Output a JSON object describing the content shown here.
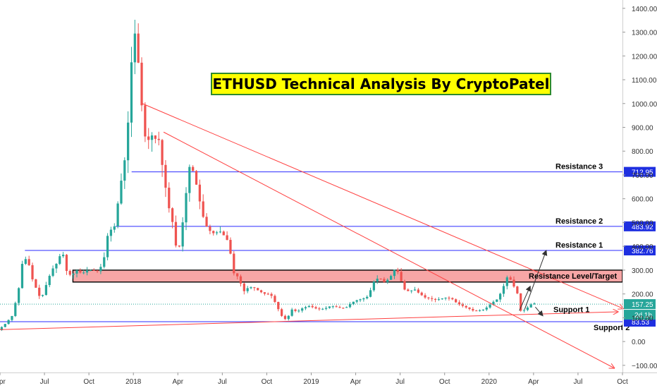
{
  "chart_data": {
    "type": "candlestick",
    "title": "ETHUSD Technical Analysis By CryptoPatel",
    "y_ticks": [
      -100,
      0,
      100,
      200,
      300,
      400,
      500,
      600,
      700,
      800,
      900,
      1000,
      1100,
      1200,
      1300,
      1400
    ],
    "y_tick_labels": [
      "−100.00",
      "0.00",
      "100.00",
      "200.00",
      "300.00",
      "400.00",
      "500.00",
      "600.00",
      "700.00",
      "800.00",
      "900.00",
      "1000.00",
      "1100.00",
      "1200.00",
      "1300.00",
      "1400.00"
    ],
    "ylim": [
      -130,
      1435
    ],
    "x_labels": [
      "Apr",
      "Jul",
      "Oct",
      "2018",
      "Apr",
      "Jul",
      "Oct",
      "2019",
      "Apr",
      "Jul",
      "Oct",
      "2020",
      "Apr",
      "Jul",
      "Oct"
    ],
    "x_label_positions": [
      2017.25,
      2017.5,
      2017.75,
      2018.0,
      2018.25,
      2018.5,
      2018.75,
      2019.0,
      2019.25,
      2019.5,
      2019.75,
      2020.0,
      2020.25,
      2020.5,
      2020.75
    ],
    "xlim": [
      2017.25,
      2020.75
    ],
    "price_path": [
      [
        2017.25,
        48
      ],
      [
        2017.29,
        75
      ],
      [
        2017.33,
        110
      ],
      [
        2017.37,
        240
      ],
      [
        2017.39,
        360
      ],
      [
        2017.42,
        330
      ],
      [
        2017.44,
        265
      ],
      [
        2017.47,
        210
      ],
      [
        2017.49,
        175
      ],
      [
        2017.52,
        240
      ],
      [
        2017.55,
        300
      ],
      [
        2017.58,
        330
      ],
      [
        2017.61,
        385
      ],
      [
        2017.63,
        300
      ],
      [
        2017.66,
        275
      ],
      [
        2017.69,
        300
      ],
      [
        2017.72,
        285
      ],
      [
        2017.75,
        300
      ],
      [
        2017.78,
        300
      ],
      [
        2017.81,
        295
      ],
      [
        2017.84,
        330
      ],
      [
        2017.87,
        470
      ],
      [
        2017.9,
        470
      ],
      [
        2017.93,
        620
      ],
      [
        2017.95,
        720
      ],
      [
        2017.97,
        800
      ],
      [
        2017.99,
        1050
      ],
      [
        2018.01,
        1330
      ],
      [
        2018.03,
        1240
      ],
      [
        2018.05,
        1050
      ],
      [
        2018.07,
        870
      ],
      [
        2018.09,
        840
      ],
      [
        2018.11,
        870
      ],
      [
        2018.13,
        850
      ],
      [
        2018.15,
        860
      ],
      [
        2018.17,
        750
      ],
      [
        2018.19,
        650
      ],
      [
        2018.21,
        560
      ],
      [
        2018.23,
        500
      ],
      [
        2018.25,
        395
      ],
      [
        2018.27,
        400
      ],
      [
        2018.29,
        520
      ],
      [
        2018.31,
        650
      ],
      [
        2018.33,
        760
      ],
      [
        2018.35,
        700
      ],
      [
        2018.37,
        640
      ],
      [
        2018.39,
        560
      ],
      [
        2018.41,
        500
      ],
      [
        2018.43,
        470
      ],
      [
        2018.45,
        460
      ],
      [
        2018.47,
        450
      ],
      [
        2018.49,
        470
      ],
      [
        2018.51,
        450
      ],
      [
        2018.53,
        440
      ],
      [
        2018.55,
        400
      ],
      [
        2018.57,
        290
      ],
      [
        2018.6,
        270
      ],
      [
        2018.63,
        210
      ],
      [
        2018.66,
        230
      ],
      [
        2018.69,
        225
      ],
      [
        2018.72,
        210
      ],
      [
        2018.75,
        200
      ],
      [
        2018.78,
        200
      ],
      [
        2018.81,
        160
      ],
      [
        2018.84,
        110
      ],
      [
        2018.87,
        90
      ],
      [
        2018.9,
        135
      ],
      [
        2018.93,
        125
      ],
      [
        2018.96,
        140
      ],
      [
        2019.0,
        150
      ],
      [
        2019.03,
        140
      ],
      [
        2019.06,
        135
      ],
      [
        2019.09,
        140
      ],
      [
        2019.12,
        150
      ],
      [
        2019.15,
        145
      ],
      [
        2019.18,
        140
      ],
      [
        2019.21,
        145
      ],
      [
        2019.24,
        165
      ],
      [
        2019.27,
        175
      ],
      [
        2019.3,
        180
      ],
      [
        2019.33,
        190
      ],
      [
        2019.36,
        250
      ],
      [
        2019.39,
        270
      ],
      [
        2019.42,
        250
      ],
      [
        2019.45,
        265
      ],
      [
        2019.48,
        305
      ],
      [
        2019.5,
        290
      ],
      [
        2019.53,
        220
      ],
      [
        2019.56,
        210
      ],
      [
        2019.59,
        220
      ],
      [
        2019.62,
        200
      ],
      [
        2019.65,
        185
      ],
      [
        2019.68,
        180
      ],
      [
        2019.71,
        175
      ],
      [
        2019.74,
        180
      ],
      [
        2019.77,
        185
      ],
      [
        2019.8,
        180
      ],
      [
        2019.83,
        160
      ],
      [
        2019.86,
        150
      ],
      [
        2019.89,
        140
      ],
      [
        2019.92,
        130
      ],
      [
        2019.95,
        130
      ],
      [
        2019.98,
        135
      ],
      [
        2020.0,
        145
      ],
      [
        2020.03,
        165
      ],
      [
        2020.06,
        180
      ],
      [
        2020.09,
        230
      ],
      [
        2020.11,
        270
      ],
      [
        2020.13,
        260
      ],
      [
        2020.15,
        230
      ],
      [
        2020.17,
        200
      ],
      [
        2020.19,
        120
      ],
      [
        2020.21,
        135
      ],
      [
        2020.23,
        145
      ],
      [
        2020.25,
        160
      ]
    ],
    "levels": [
      {
        "label": "Resistance 3",
        "value": 712.95,
        "price_label": "712.95"
      },
      {
        "label": "Resistance 2",
        "value": 483.92,
        "price_label": "483.92"
      },
      {
        "label": "Resistance 1",
        "value": 382.76,
        "price_label": "382.76"
      },
      {
        "label": "Support 2",
        "value": 83.53,
        "price_label": "83.53"
      }
    ],
    "zone": {
      "label": "Resistance Level/Target",
      "low": 250,
      "high": 300
    },
    "support1_label": "Support 1",
    "current_price": {
      "value": 157.25,
      "price_label": "157.25"
    },
    "countdown_label": "2d 1h",
    "trendlines": [
      {
        "name": "downtrend-upper",
        "from": [
          2018.05,
          1000
        ],
        "to": [
          2020.75,
          140
        ]
      },
      {
        "name": "downtrend-lower",
        "from": [
          2018.17,
          880
        ],
        "to": [
          2020.7,
          -110
        ]
      },
      {
        "name": "support-line",
        "from": [
          2017.25,
          50
        ],
        "to": [
          2020.72,
          125
        ]
      }
    ],
    "projection_arrows": [
      [
        [
          2020.17,
          130
        ],
        [
          2020.23,
          230
        ]
      ],
      [
        [
          2020.2,
          135
        ],
        [
          2020.32,
          380
        ]
      ],
      [
        [
          2020.26,
          145
        ],
        [
          2020.3,
          110
        ]
      ]
    ],
    "colors": {
      "up": "#26a69a",
      "down": "#ef5350",
      "level": "#2b2bff",
      "zone": "#f7a6a6",
      "trend": "#ff4040",
      "title_bg": "#ffff00",
      "title_border": "#2e8b2e",
      "badge_bg": "#1e2fe0"
    }
  }
}
